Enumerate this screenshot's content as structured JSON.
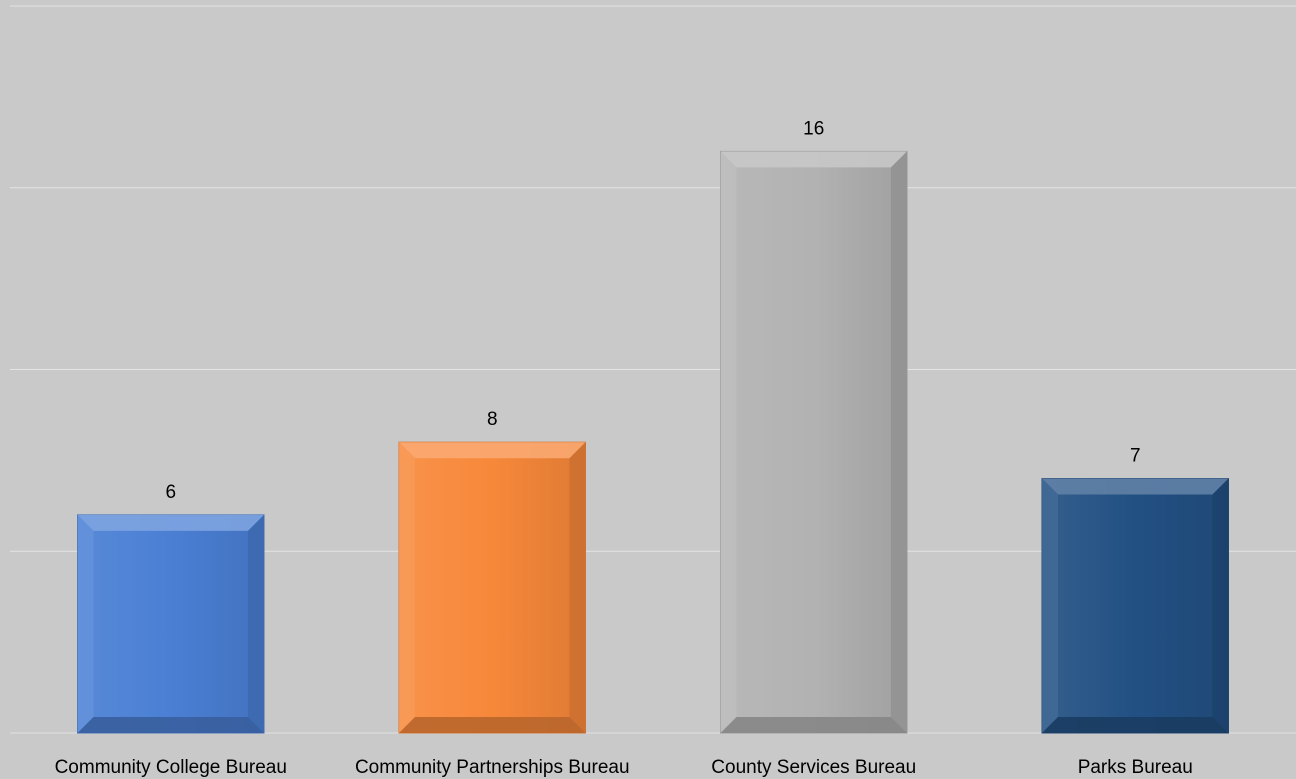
{
  "chart_data": {
    "type": "bar",
    "title": "",
    "xlabel": "",
    "ylabel": "",
    "categories": [
      "Community College Bureau",
      "Community Partnerships Bureau",
      "County Services Bureau",
      "Parks Bureau"
    ],
    "values": [
      6,
      8,
      16,
      7
    ],
    "ylim": [
      0,
      20
    ],
    "gridlines": [
      0,
      5,
      10,
      15,
      20
    ],
    "grid": true,
    "legend": "none",
    "colors": [
      "#4a7fd4",
      "#f7883a",
      "#b2b2b2",
      "#225083"
    ],
    "data_labels": [
      "6",
      "8",
      "16",
      "7"
    ]
  }
}
